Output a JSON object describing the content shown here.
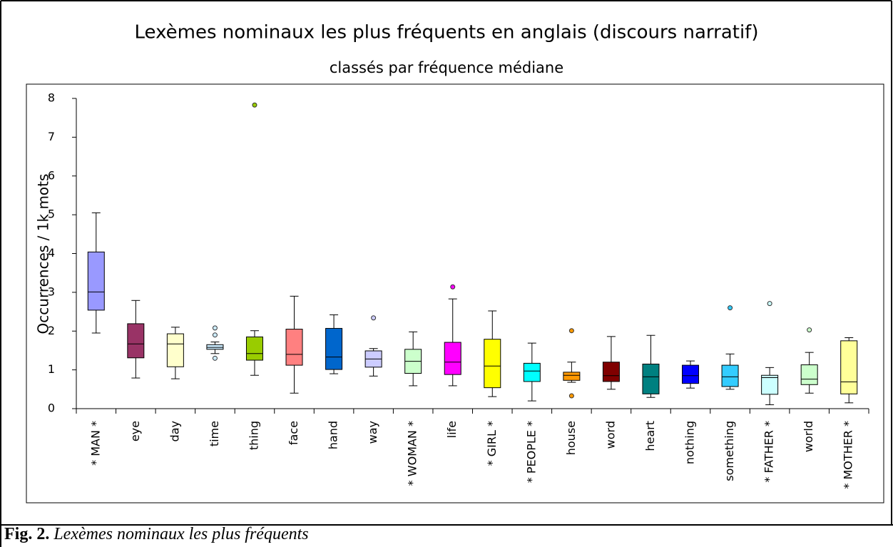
{
  "chart_data": {
    "type": "boxplot",
    "title": "Lexèmes nominaux les plus fréquents en anglais (discours narratif)",
    "subtitle": "classés par fréquence médiane",
    "ylabel": "Occurrences / 1k mots",
    "ylim": [
      0,
      8
    ],
    "yticks": [
      0,
      1,
      2,
      3,
      4,
      5,
      6,
      7,
      8
    ],
    "categories": [
      "* MAN *",
      "eye",
      "day",
      "time",
      "thing",
      "face",
      "hand",
      "way",
      "* WOMAN *",
      "life",
      "* GIRL *",
      "* PEOPLE *",
      "house",
      "word",
      "heart",
      "nothing",
      "something",
      "* FATHER *",
      "world",
      "* MOTHER *"
    ],
    "boxes": [
      {
        "whislo": 1.95,
        "q1": 2.54,
        "median": 3.01,
        "q3": 4.04,
        "whishi": 5.05,
        "fliers": [],
        "color": "#9999ff"
      },
      {
        "whislo": 0.79,
        "q1": 1.31,
        "median": 1.67,
        "q3": 2.19,
        "whishi": 2.79,
        "fliers": [],
        "color": "#993366"
      },
      {
        "whislo": 0.77,
        "q1": 1.08,
        "median": 1.67,
        "q3": 1.93,
        "whishi": 2.1,
        "fliers": [],
        "color": "#ffffcc"
      },
      {
        "whislo": 1.42,
        "q1": 1.53,
        "median": 1.58,
        "q3": 1.65,
        "whishi": 1.72,
        "fliers": [
          2.08,
          1.9,
          1.3
        ],
        "color": "#ccecff"
      },
      {
        "whislo": 0.86,
        "q1": 1.25,
        "median": 1.42,
        "q3": 1.85,
        "whishi": 2.01,
        "fliers": [
          7.83
        ],
        "color": "#99cc00"
      },
      {
        "whislo": 0.4,
        "q1": 1.12,
        "median": 1.4,
        "q3": 2.05,
        "whishi": 2.9,
        "fliers": [],
        "color": "#ff8080"
      },
      {
        "whislo": 0.9,
        "q1": 1.01,
        "median": 1.33,
        "q3": 2.07,
        "whishi": 2.42,
        "fliers": [],
        "color": "#0066cc"
      },
      {
        "whislo": 0.84,
        "q1": 1.07,
        "median": 1.28,
        "q3": 1.49,
        "whishi": 1.55,
        "fliers": [
          2.34
        ],
        "color": "#ccccff"
      },
      {
        "whislo": 0.59,
        "q1": 0.91,
        "median": 1.22,
        "q3": 1.53,
        "whishi": 1.98,
        "fliers": [],
        "color": "#ccffcc"
      },
      {
        "whislo": 0.59,
        "q1": 0.88,
        "median": 1.2,
        "q3": 1.71,
        "whishi": 2.83,
        "fliers": [
          3.14
        ],
        "color": "#ff00ff"
      },
      {
        "whislo": 0.31,
        "q1": 0.54,
        "median": 1.1,
        "q3": 1.79,
        "whishi": 2.52,
        "fliers": [],
        "color": "#ffff00"
      },
      {
        "whislo": 0.2,
        "q1": 0.7,
        "median": 0.97,
        "q3": 1.17,
        "whishi": 1.69,
        "fliers": [],
        "color": "#00ffff"
      },
      {
        "whislo": 0.68,
        "q1": 0.73,
        "median": 0.86,
        "q3": 0.94,
        "whishi": 1.2,
        "fliers": [
          2.01,
          0.33
        ],
        "color": "#ff9900"
      },
      {
        "whislo": 0.5,
        "q1": 0.7,
        "median": 0.85,
        "q3": 1.2,
        "whishi": 1.86,
        "fliers": [],
        "color": "#800000"
      },
      {
        "whislo": 0.29,
        "q1": 0.38,
        "median": 0.82,
        "q3": 1.15,
        "whishi": 1.89,
        "fliers": [],
        "color": "#008080"
      },
      {
        "whislo": 0.53,
        "q1": 0.65,
        "median": 0.85,
        "q3": 1.12,
        "whishi": 1.23,
        "fliers": [],
        "color": "#0000ff"
      },
      {
        "whislo": 0.5,
        "q1": 0.57,
        "median": 0.82,
        "q3": 1.12,
        "whishi": 1.41,
        "fliers": [
          2.6
        ],
        "color": "#33ccff"
      },
      {
        "whislo": 0.1,
        "q1": 0.37,
        "median": 0.8,
        "q3": 0.86,
        "whishi": 1.06,
        "fliers": [
          2.71
        ],
        "color": "#ccffff"
      },
      {
        "whislo": 0.4,
        "q1": 0.62,
        "median": 0.76,
        "q3": 1.13,
        "whishi": 1.45,
        "fliers": [
          2.03
        ],
        "color": "#ccffcc"
      },
      {
        "whislo": 0.15,
        "q1": 0.38,
        "median": 0.69,
        "q3": 1.75,
        "whishi": 1.83,
        "fliers": [],
        "color": "#ffff99"
      }
    ]
  },
  "caption": {
    "label": "Fig. 2.",
    "text": "Lexèmes nominaux les plus fréquents"
  }
}
